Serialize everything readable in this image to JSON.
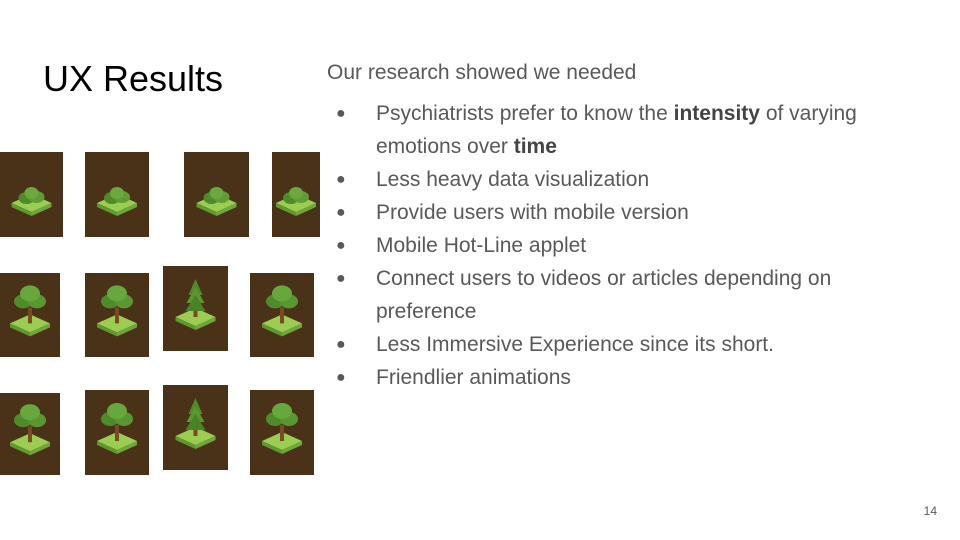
{
  "slide": {
    "title": "UX Results",
    "intro": "Our research showed we needed",
    "bullets": [
      {
        "parts": [
          {
            "text": "Psychiatrists prefer to know the ",
            "bold": false
          },
          {
            "text": "intensity",
            "bold": true
          },
          {
            "text": " of varying emotions over ",
            "bold": false
          },
          {
            "text": "time",
            "bold": true
          }
        ]
      },
      {
        "parts": [
          {
            "text": "Less heavy data visualization",
            "bold": false
          }
        ]
      },
      {
        "parts": [
          {
            "text": "Provide users with mobile version",
            "bold": false
          }
        ]
      },
      {
        "parts": [
          {
            "text": "Mobile Hot-Line applet",
            "bold": false
          }
        ]
      },
      {
        "parts": [
          {
            "text": "Connect users to videos or articles depending on preference",
            "bold": false
          }
        ]
      },
      {
        "parts": [
          {
            "text": "Less Immersive Experience since its short.",
            "bold": false
          }
        ]
      },
      {
        "parts": [
          {
            "text": "Friendlier animations",
            "bold": false
          }
        ]
      }
    ],
    "bullet_glyph": "●",
    "page_number": "14"
  },
  "sprites": {
    "icons": [
      "bush-sprite-icon",
      "round-tree-sprite-icon",
      "pine-tree-sprite-icon"
    ],
    "colors": {
      "background": "#4a3219",
      "grass": "#9acd52",
      "grass_dark": "#5e9a2e",
      "foliage": "#4f8a2b",
      "trunk": "#7a4a22"
    }
  }
}
